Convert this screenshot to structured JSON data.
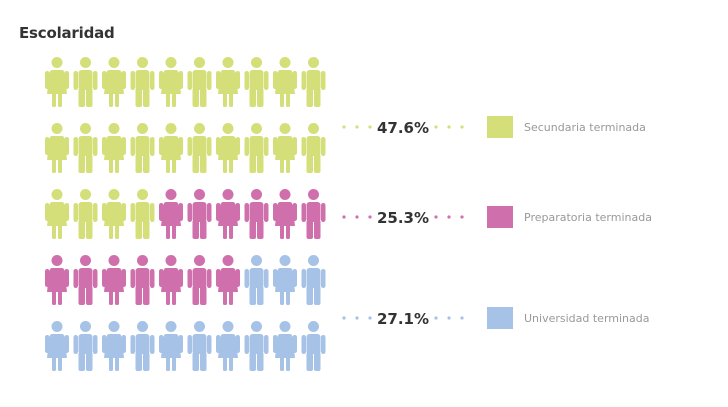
{
  "title": "Escolaridad",
  "colors": {
    "secundaria": "#d4df7a",
    "preparatoria": "#cf70ad",
    "universidad": "#a6c2e6",
    "dot_text": "#333333",
    "legend_text": "#999999"
  },
  "chart_data": {
    "type": "pictogram",
    "title": "Escolaridad",
    "unit_count": 50,
    "series": [
      {
        "key": "secundaria",
        "name": "Secundaria terminada",
        "value": 47.6,
        "label": "47.6%",
        "units": 24
      },
      {
        "key": "preparatoria",
        "name": "Preparatoria terminada",
        "value": 25.3,
        "label": "25.3%",
        "units": 13
      },
      {
        "key": "universidad",
        "name": "Universidad terminada",
        "value": 27.1,
        "label": "27.1%",
        "units": 13
      }
    ],
    "figure_pattern": [
      "female",
      "male"
    ],
    "legend_position": "right"
  }
}
